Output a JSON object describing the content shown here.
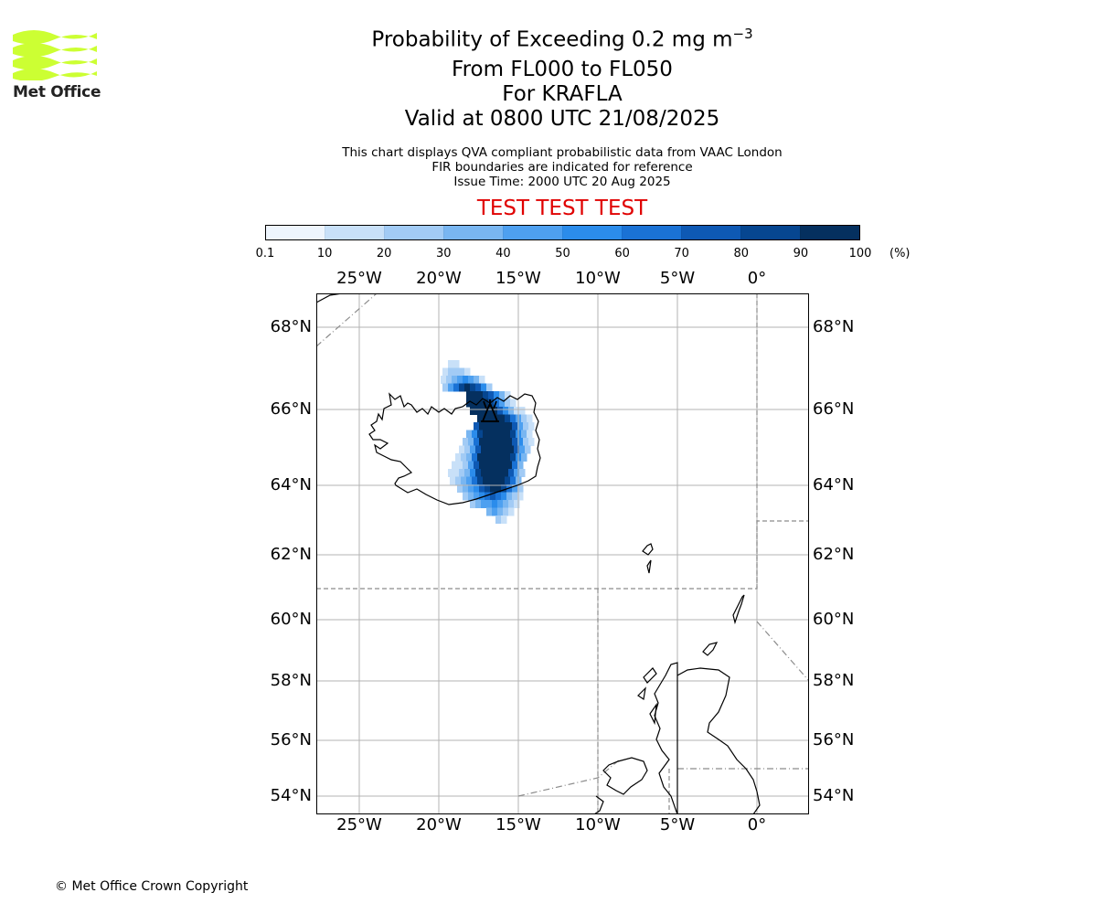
{
  "logo": {
    "text": "Met Office",
    "icon": "met-office-wave-logo",
    "color": "#ccff33"
  },
  "header": {
    "title_main": "Probability of Exceeding 0.2 mg m",
    "title_exp": "−3",
    "level_range": "From FL000 to FL050",
    "volcano": "For KRAFLA",
    "valid": "Valid at 0800 UTC 21/08/2025",
    "note1": "This chart displays QVA compliant probabilistic data from VAAC London",
    "note2": "FIR boundaries are indicated for reference",
    "issue": "Issue Time: 2000 UTC 20 Aug 2025",
    "test_banner": "TEST TEST TEST"
  },
  "colorbar": {
    "ticks": [
      "0.1",
      "10",
      "20",
      "30",
      "40",
      "50",
      "60",
      "70",
      "80",
      "90",
      "100"
    ],
    "unit": "(%)",
    "colors": [
      "#eef5fd",
      "#c8e0f8",
      "#a2cbf5",
      "#79b6f1",
      "#4ea0f0",
      "#2b8ceb",
      "#1a72d5",
      "#0e59b4",
      "#064690",
      "#05305f"
    ]
  },
  "map": {
    "lon_labels": [
      "25°W",
      "20°W",
      "15°W",
      "10°W",
      "5°W",
      "0°"
    ],
    "lat_labels": [
      "68°N",
      "66°N",
      "64°N",
      "62°N",
      "60°N",
      "58°N",
      "56°N",
      "54°N"
    ],
    "volcano_icon": "volcano-marker-icon"
  },
  "footer": {
    "copyright": "© Met Office Crown Copyright"
  }
}
